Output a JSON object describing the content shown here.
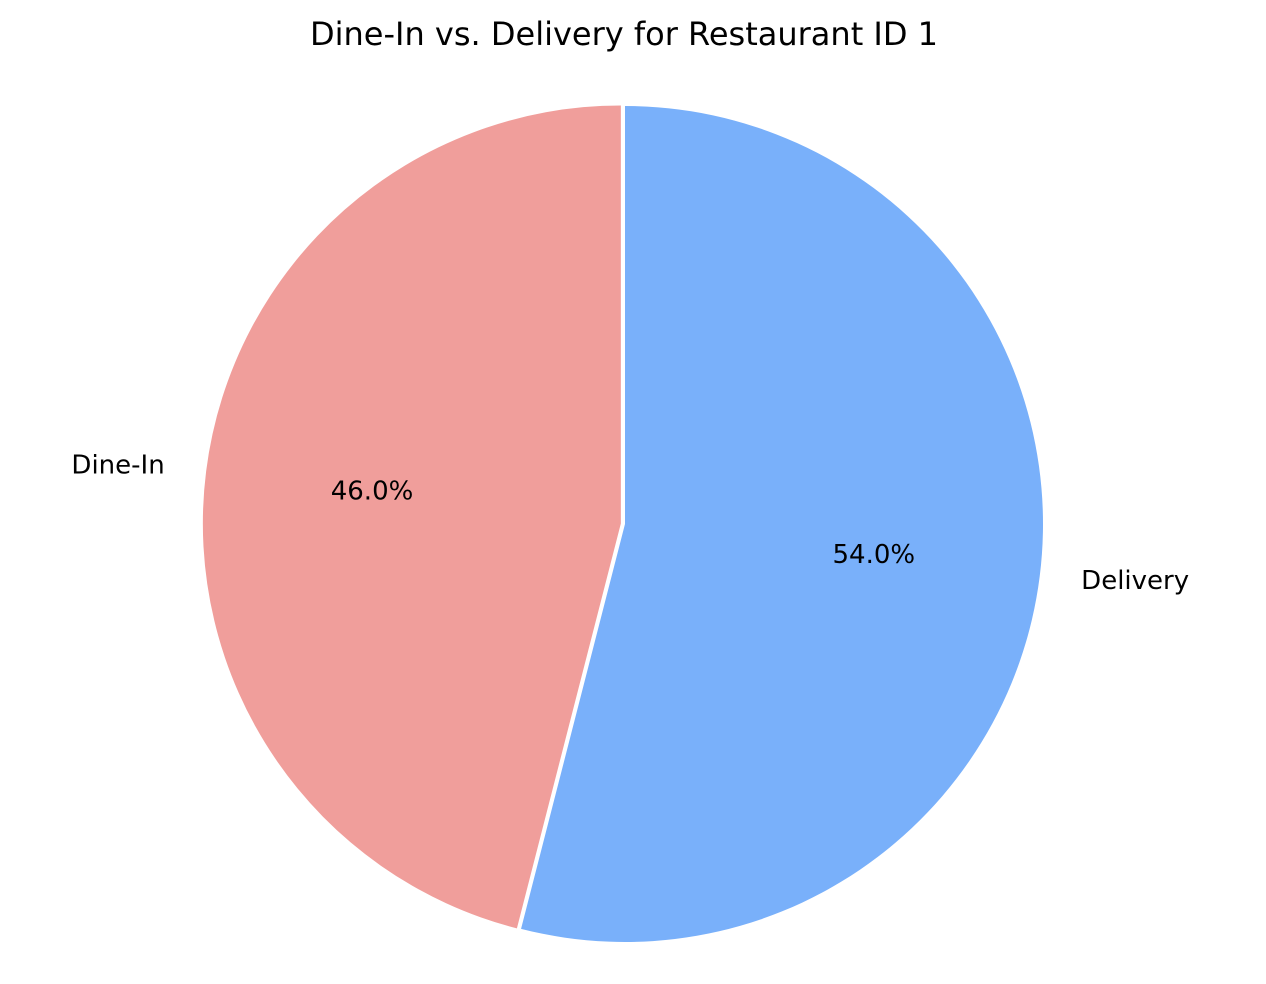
{
  "chart_data": {
    "type": "pie",
    "title": "Dine-In vs. Delivery for Restaurant ID 1",
    "slices": [
      {
        "label": "Dine-In",
        "value": 46.0,
        "pct_label": "46.0%",
        "color": "#f09e9b",
        "explode": 0.1
      },
      {
        "label": "Delivery",
        "value": 54.0,
        "pct_label": "54.0%",
        "color": "#79b0fa",
        "explode": 0.0
      }
    ],
    "start_angle_deg": 90,
    "direction": "counterclockwise",
    "legend": "none"
  }
}
